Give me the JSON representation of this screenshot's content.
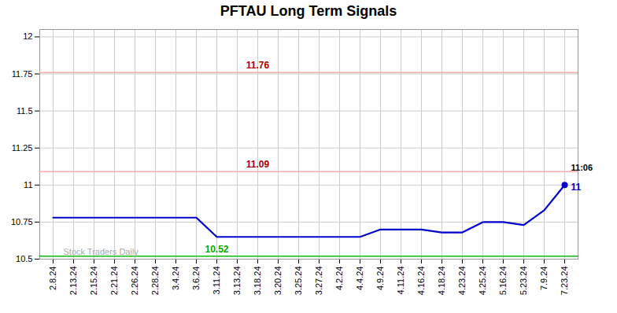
{
  "chart_data": {
    "type": "line",
    "title": "PFTAU Long Term Signals",
    "categories": [
      "2.8.24",
      "2.13.24",
      "2.15.24",
      "2.21.24",
      "2.26.24",
      "2.28.24",
      "3.4.24",
      "3.6.24",
      "3.11.24",
      "3.13.24",
      "3.18.24",
      "3.20.24",
      "3.25.24",
      "3.27.24",
      "4.2.24",
      "4.4.24",
      "4.9.24",
      "4.11.24",
      "4.16.24",
      "4.18.24",
      "4.23.24",
      "4.25.24",
      "5.16.24",
      "5.23.24",
      "7.9.24",
      "7.23.24"
    ],
    "values": [
      10.78,
      10.78,
      10.78,
      10.78,
      10.78,
      10.78,
      10.78,
      10.78,
      10.65,
      10.65,
      10.65,
      10.65,
      10.65,
      10.65,
      10.65,
      10.65,
      10.7,
      10.7,
      10.7,
      10.68,
      10.68,
      10.75,
      10.75,
      10.73,
      10.83,
      11.0
    ],
    "color": "#0000cc",
    "marker": "circle",
    "hlines": [
      {
        "value": 11.76,
        "label": "11.76",
        "color": "#ffaaaa",
        "label_color": "#aa0000"
      },
      {
        "value": 11.09,
        "label": "11.09",
        "color": "#ffaaaa",
        "label_color": "#aa0000"
      },
      {
        "value": 10.52,
        "label": "10.52",
        "color": "#00bb00",
        "label_color": "#00aa00"
      }
    ],
    "annotations": [
      {
        "text": "11",
        "color": "#0000cc"
      },
      {
        "text": "11:06",
        "color": "#000000"
      }
    ],
    "watermark": "Stock Traders Daily",
    "watermark_color": "#aaaaaa",
    "ylim": [
      10.5,
      12.05
    ],
    "yticks": [
      10.5,
      10.75,
      11,
      11.25,
      11.5,
      11.75,
      12
    ],
    "grid": true
  }
}
